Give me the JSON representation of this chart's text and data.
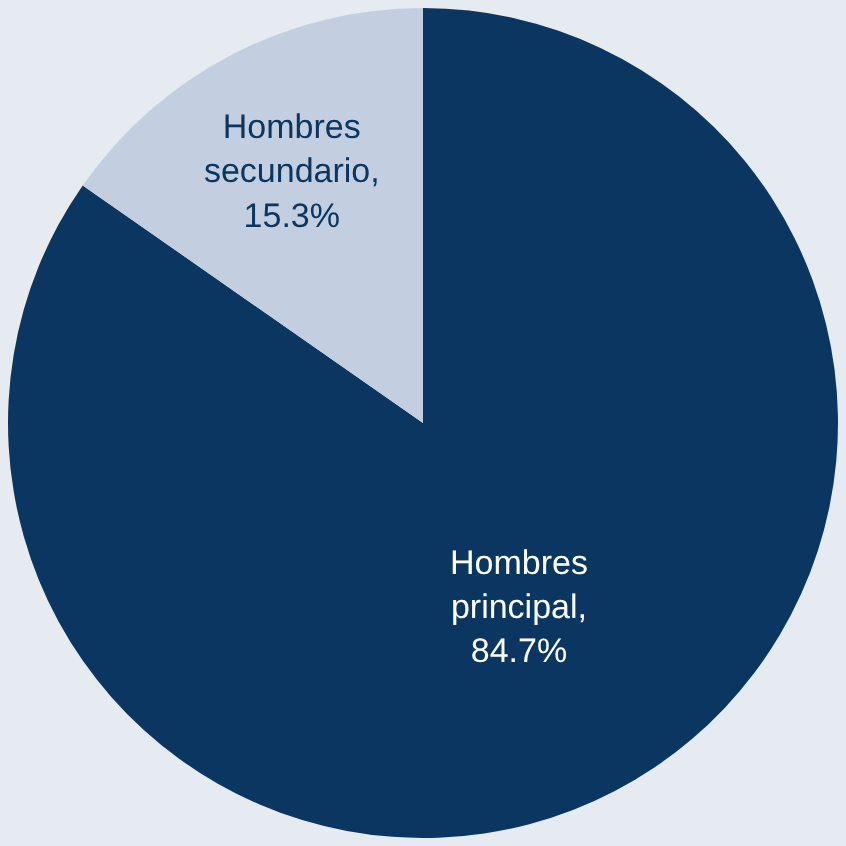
{
  "chart_data": {
    "type": "pie",
    "categories": [
      "Hombres principal",
      "Hombres secundario"
    ],
    "values": [
      84.7,
      15.3
    ],
    "value_labels": [
      ", 84.7%",
      ", 15.3%"
    ],
    "colors": [
      "#0b3661",
      "#c3cfe1"
    ]
  }
}
